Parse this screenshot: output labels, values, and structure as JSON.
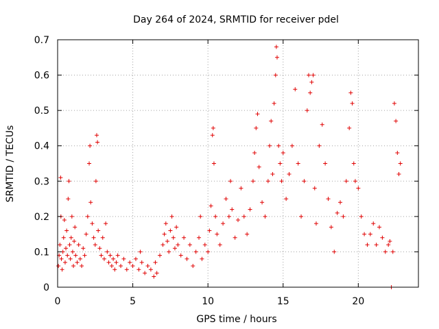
{
  "chart_data": {
    "type": "scatter",
    "title": "Day 264 of 2024, SRMTID for receiver pdel",
    "xlabel": "GPS time / hours",
    "ylabel": "SRMTID / TECUs",
    "xlim": [
      0,
      24
    ],
    "ylim": [
      0,
      0.7
    ],
    "xticks": [
      0,
      5,
      10,
      15,
      20
    ],
    "yticks": [
      0,
      0.1,
      0.2,
      0.3,
      0.4,
      0.5,
      0.6,
      0.7
    ],
    "xtick_labels": [
      "0",
      "5",
      "10",
      "15",
      "20"
    ],
    "ytick_labels": [
      "0",
      "0.1",
      "0.2",
      "0.3",
      "0.4",
      "0.5",
      "0.6",
      "0.7"
    ],
    "grid": true,
    "marker": "+",
    "color": "#e00000",
    "series": [
      {
        "name": "SRMTID",
        "points": [
          [
            0.05,
            0.06
          ],
          [
            0.1,
            0.09
          ],
          [
            0.15,
            0.12
          ],
          [
            0.2,
            0.31
          ],
          [
            0.22,
            0.2
          ],
          [
            0.25,
            0.08
          ],
          [
            0.3,
            0.05
          ],
          [
            0.35,
            0.1
          ],
          [
            0.4,
            0.14
          ],
          [
            0.45,
            0.19
          ],
          [
            0.5,
            0.07
          ],
          [
            0.55,
            0.11
          ],
          [
            0.6,
            0.16
          ],
          [
            0.65,
            0.09
          ],
          [
            0.7,
            0.25
          ],
          [
            0.75,
            0.3
          ],
          [
            0.8,
            0.12
          ],
          [
            0.85,
            0.08
          ],
          [
            0.9,
            0.14
          ],
          [
            0.95,
            0.2
          ],
          [
            1.0,
            0.1
          ],
          [
            1.05,
            0.06
          ],
          [
            1.1,
            0.13
          ],
          [
            1.15,
            0.17
          ],
          [
            1.2,
            0.09
          ],
          [
            1.3,
            0.07
          ],
          [
            1.4,
            0.12
          ],
          [
            1.5,
            0.08
          ],
          [
            1.6,
            0.06
          ],
          [
            1.7,
            0.11
          ],
          [
            1.8,
            0.09
          ],
          [
            1.9,
            0.15
          ],
          [
            2.0,
            0.2
          ],
          [
            2.1,
            0.35
          ],
          [
            2.15,
            0.4
          ],
          [
            2.2,
            0.24
          ],
          [
            2.3,
            0.18
          ],
          [
            2.4,
            0.14
          ],
          [
            2.5,
            0.12
          ],
          [
            2.55,
            0.3
          ],
          [
            2.6,
            0.43
          ],
          [
            2.65,
            0.41
          ],
          [
            2.7,
            0.16
          ],
          [
            2.8,
            0.11
          ],
          [
            2.9,
            0.09
          ],
          [
            3.0,
            0.14
          ],
          [
            3.1,
            0.08
          ],
          [
            3.2,
            0.18
          ],
          [
            3.3,
            0.1
          ],
          [
            3.4,
            0.07
          ],
          [
            3.5,
            0.09
          ],
          [
            3.6,
            0.06
          ],
          [
            3.7,
            0.08
          ],
          [
            3.8,
            0.05
          ],
          [
            3.9,
            0.07
          ],
          [
            4.0,
            0.09
          ],
          [
            4.2,
            0.06
          ],
          [
            4.4,
            0.08
          ],
          [
            4.6,
            0.05
          ],
          [
            4.8,
            0.07
          ],
          [
            5.0,
            0.06
          ],
          [
            5.2,
            0.08
          ],
          [
            5.4,
            0.05
          ],
          [
            5.5,
            0.1
          ],
          [
            5.6,
            0.07
          ],
          [
            5.8,
            0.04
          ],
          [
            6.0,
            0.06
          ],
          [
            6.2,
            0.05
          ],
          [
            6.4,
            0.03
          ],
          [
            6.5,
            0.07
          ],
          [
            6.6,
            0.04
          ],
          [
            6.8,
            0.09
          ],
          [
            7.0,
            0.12
          ],
          [
            7.1,
            0.15
          ],
          [
            7.2,
            0.18
          ],
          [
            7.3,
            0.13
          ],
          [
            7.4,
            0.1
          ],
          [
            7.5,
            0.16
          ],
          [
            7.6,
            0.2
          ],
          [
            7.7,
            0.14
          ],
          [
            7.8,
            0.11
          ],
          [
            7.9,
            0.17
          ],
          [
            8.0,
            0.12
          ],
          [
            8.2,
            0.09
          ],
          [
            8.4,
            0.14
          ],
          [
            8.6,
            0.08
          ],
          [
            8.8,
            0.12
          ],
          [
            9.0,
            0.06
          ],
          [
            9.2,
            0.1
          ],
          [
            9.4,
            0.14
          ],
          [
            9.5,
            0.2
          ],
          [
            9.6,
            0.08
          ],
          [
            9.8,
            0.12
          ],
          [
            10.0,
            0.1
          ],
          [
            10.1,
            0.16
          ],
          [
            10.2,
            0.23
          ],
          [
            10.3,
            0.43
          ],
          [
            10.35,
            0.45
          ],
          [
            10.4,
            0.35
          ],
          [
            10.5,
            0.2
          ],
          [
            10.6,
            0.15
          ],
          [
            10.8,
            0.12
          ],
          [
            11.0,
            0.18
          ],
          [
            11.2,
            0.25
          ],
          [
            11.4,
            0.2
          ],
          [
            11.5,
            0.3
          ],
          [
            11.6,
            0.22
          ],
          [
            11.8,
            0.14
          ],
          [
            12.0,
            0.19
          ],
          [
            12.2,
            0.28
          ],
          [
            12.4,
            0.2
          ],
          [
            12.6,
            0.15
          ],
          [
            12.8,
            0.22
          ],
          [
            13.0,
            0.3
          ],
          [
            13.1,
            0.38
          ],
          [
            13.2,
            0.45
          ],
          [
            13.3,
            0.49
          ],
          [
            13.4,
            0.34
          ],
          [
            13.6,
            0.24
          ],
          [
            13.8,
            0.2
          ],
          [
            14.0,
            0.3
          ],
          [
            14.1,
            0.4
          ],
          [
            14.2,
            0.47
          ],
          [
            14.3,
            0.32
          ],
          [
            14.4,
            0.52
          ],
          [
            14.5,
            0.6
          ],
          [
            14.55,
            0.68
          ],
          [
            14.6,
            0.65
          ],
          [
            14.7,
            0.4
          ],
          [
            14.8,
            0.35
          ],
          [
            14.9,
            0.3
          ],
          [
            15.0,
            0.38
          ],
          [
            15.2,
            0.25
          ],
          [
            15.4,
            0.32
          ],
          [
            15.6,
            0.4
          ],
          [
            15.8,
            0.56
          ],
          [
            16.0,
            0.35
          ],
          [
            16.2,
            0.2
          ],
          [
            16.4,
            0.3
          ],
          [
            16.6,
            0.5
          ],
          [
            16.7,
            0.6
          ],
          [
            16.8,
            0.55
          ],
          [
            16.9,
            0.58
          ],
          [
            17.0,
            0.6
          ],
          [
            17.1,
            0.28
          ],
          [
            17.2,
            0.18
          ],
          [
            17.4,
            0.4
          ],
          [
            17.6,
            0.46
          ],
          [
            17.8,
            0.35
          ],
          [
            18.0,
            0.25
          ],
          [
            18.2,
            0.17
          ],
          [
            18.4,
            0.1
          ],
          [
            18.6,
            0.21
          ],
          [
            18.8,
            0.24
          ],
          [
            19.0,
            0.2
          ],
          [
            19.2,
            0.3
          ],
          [
            19.4,
            0.45
          ],
          [
            19.5,
            0.55
          ],
          [
            19.6,
            0.52
          ],
          [
            19.7,
            0.35
          ],
          [
            19.8,
            0.3
          ],
          [
            20.0,
            0.28
          ],
          [
            20.2,
            0.2
          ],
          [
            20.4,
            0.15
          ],
          [
            20.6,
            0.12
          ],
          [
            20.8,
            0.15
          ],
          [
            21.0,
            0.18
          ],
          [
            21.2,
            0.12
          ],
          [
            21.4,
            0.17
          ],
          [
            21.6,
            0.14
          ],
          [
            21.8,
            0.1
          ],
          [
            22.0,
            0.12
          ],
          [
            22.1,
            0.13
          ],
          [
            22.2,
            0.0
          ],
          [
            22.3,
            0.1
          ],
          [
            22.4,
            0.52
          ],
          [
            22.5,
            0.47
          ],
          [
            22.6,
            0.38
          ],
          [
            22.7,
            0.32
          ],
          [
            22.8,
            0.35
          ]
        ]
      }
    ]
  }
}
